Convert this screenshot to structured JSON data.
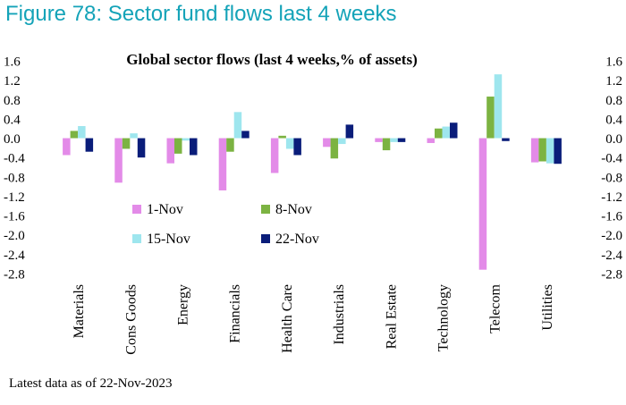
{
  "figure_title": "Figure 78: Sector fund flows last 4 weeks",
  "footnote": "Latest data as of 22-Nov-2023",
  "chart_data": {
    "type": "bar",
    "title": "Global sector flows (last 4 weeks,% of assets)",
    "xlabel": "",
    "ylabel": "",
    "ylim": [
      -2.8,
      1.6
    ],
    "yticks": [
      "1.6",
      "1.2",
      "0.8",
      "0.4",
      "0.0",
      "-0.4",
      "-0.8",
      "-1.2",
      "-1.6",
      "-2.0",
      "-2.4",
      "-2.8"
    ],
    "ytick_values": [
      1.6,
      1.2,
      0.8,
      0.4,
      0.0,
      -0.4,
      -0.8,
      -1.2,
      -1.6,
      -2.0,
      -2.4,
      -2.8
    ],
    "grid": false,
    "legend_placement": "center-left",
    "categories": [
      "Materials",
      "Cons Goods",
      "Energy",
      "Financials",
      "Health Care",
      "Industrials",
      "Real Estate",
      "Technology",
      "Telecom",
      "Utilities"
    ],
    "series": [
      {
        "name": "1-Nov",
        "color": "#e38be8",
        "values": [
          -0.35,
          -0.92,
          -0.52,
          -1.08,
          -0.72,
          -0.18,
          -0.08,
          -0.1,
          -2.72,
          -0.5
        ]
      },
      {
        "name": "8-Nov",
        "color": "#7cb342",
        "values": [
          0.15,
          -0.22,
          -0.32,
          -0.28,
          0.05,
          -0.42,
          -0.25,
          0.2,
          0.86,
          -0.48
        ]
      },
      {
        "name": "15-Nov",
        "color": "#9ee6ee",
        "values": [
          0.25,
          0.1,
          -0.05,
          0.54,
          -0.22,
          -0.12,
          -0.08,
          0.24,
          1.32,
          -0.52
        ]
      },
      {
        "name": "22-Nov",
        "color": "#0a1d7a",
        "values": [
          -0.28,
          -0.4,
          -0.35,
          0.15,
          -0.35,
          0.28,
          -0.08,
          0.32,
          -0.06,
          -0.53
        ]
      }
    ]
  }
}
